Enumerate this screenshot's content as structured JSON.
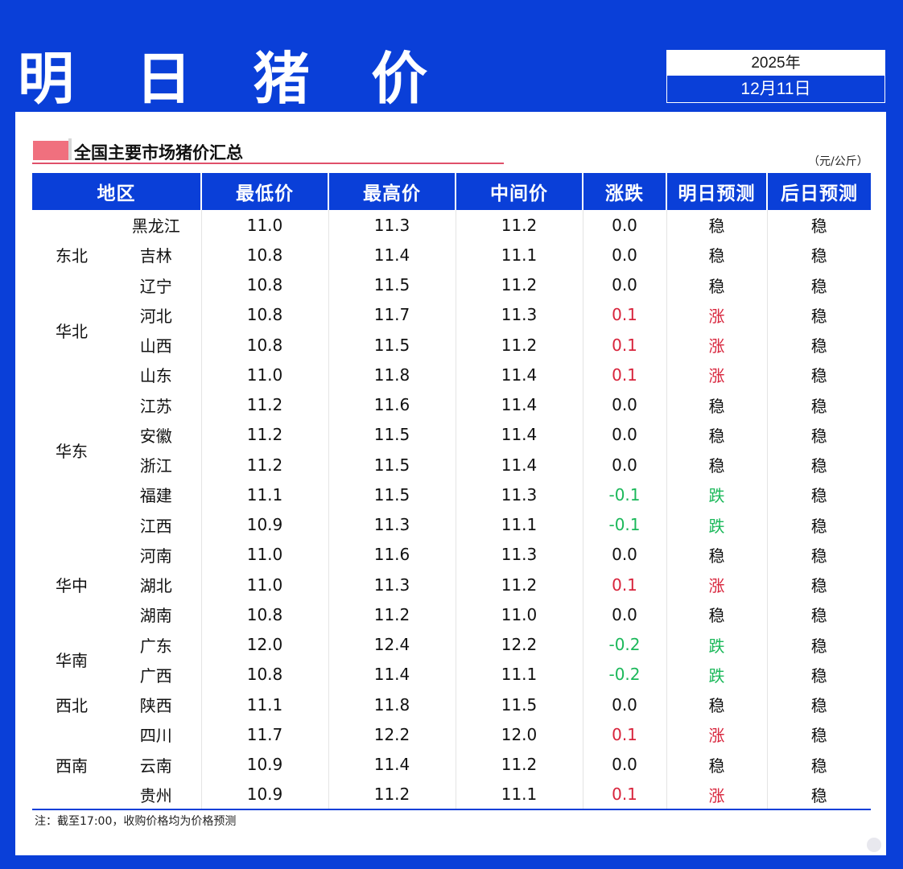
{
  "header": {
    "title": "明 日 猪 价",
    "year": "2025年",
    "date": "12月11日"
  },
  "section": {
    "title": "全国主要市场猪价汇总",
    "unit": "（元/公斤）"
  },
  "colors": {
    "brand_blue": "#0a3fd8",
    "up_red": "#d8243c",
    "down_green": "#1bb85a",
    "marker_pink": "#f0707e"
  },
  "table": {
    "headers": [
      "地区",
      "最低价",
      "最高价",
      "中间价",
      "涨跌",
      "明日预测",
      "后日预测"
    ],
    "regions": [
      {
        "name": "东北",
        "rows": [
          {
            "province": "黑龙江",
            "low": "11.0",
            "high": "11.3",
            "mid": "11.2",
            "change": "0.0",
            "tomorrow": "稳",
            "after": "稳",
            "trend": "flat"
          },
          {
            "province": "吉林",
            "low": "10.8",
            "high": "11.4",
            "mid": "11.1",
            "change": "0.0",
            "tomorrow": "稳",
            "after": "稳",
            "trend": "flat"
          },
          {
            "province": "辽宁",
            "low": "10.8",
            "high": "11.5",
            "mid": "11.2",
            "change": "0.0",
            "tomorrow": "稳",
            "after": "稳",
            "trend": "flat"
          }
        ]
      },
      {
        "name": "华北",
        "rows": [
          {
            "province": "河北",
            "low": "10.8",
            "high": "11.7",
            "mid": "11.3",
            "change": "0.1",
            "tomorrow": "涨",
            "after": "稳",
            "trend": "up"
          },
          {
            "province": "山西",
            "low": "10.8",
            "high": "11.5",
            "mid": "11.2",
            "change": "0.1",
            "tomorrow": "涨",
            "after": "稳",
            "trend": "up"
          }
        ]
      },
      {
        "name": "华东",
        "rows": [
          {
            "province": "山东",
            "low": "11.0",
            "high": "11.8",
            "mid": "11.4",
            "change": "0.1",
            "tomorrow": "涨",
            "after": "稳",
            "trend": "up"
          },
          {
            "province": "江苏",
            "low": "11.2",
            "high": "11.6",
            "mid": "11.4",
            "change": "0.0",
            "tomorrow": "稳",
            "after": "稳",
            "trend": "flat"
          },
          {
            "province": "安徽",
            "low": "11.2",
            "high": "11.5",
            "mid": "11.4",
            "change": "0.0",
            "tomorrow": "稳",
            "after": "稳",
            "trend": "flat"
          },
          {
            "province": "浙江",
            "low": "11.2",
            "high": "11.5",
            "mid": "11.4",
            "change": "0.0",
            "tomorrow": "稳",
            "after": "稳",
            "trend": "flat"
          },
          {
            "province": "福建",
            "low": "11.1",
            "high": "11.5",
            "mid": "11.3",
            "change": "-0.1",
            "tomorrow": "跌",
            "after": "稳",
            "trend": "down"
          },
          {
            "province": "江西",
            "low": "10.9",
            "high": "11.3",
            "mid": "11.1",
            "change": "-0.1",
            "tomorrow": "跌",
            "after": "稳",
            "trend": "down"
          }
        ]
      },
      {
        "name": "华中",
        "rows": [
          {
            "province": "河南",
            "low": "11.0",
            "high": "11.6",
            "mid": "11.3",
            "change": "0.0",
            "tomorrow": "稳",
            "after": "稳",
            "trend": "flat"
          },
          {
            "province": "湖北",
            "low": "11.0",
            "high": "11.3",
            "mid": "11.2",
            "change": "0.1",
            "tomorrow": "涨",
            "after": "稳",
            "trend": "up"
          },
          {
            "province": "湖南",
            "low": "10.8",
            "high": "11.2",
            "mid": "11.0",
            "change": "0.0",
            "tomorrow": "稳",
            "after": "稳",
            "trend": "flat"
          }
        ]
      },
      {
        "name": "华南",
        "rows": [
          {
            "province": "广东",
            "low": "12.0",
            "high": "12.4",
            "mid": "12.2",
            "change": "-0.2",
            "tomorrow": "跌",
            "after": "稳",
            "trend": "down"
          },
          {
            "province": "广西",
            "low": "10.8",
            "high": "11.4",
            "mid": "11.1",
            "change": "-0.2",
            "tomorrow": "跌",
            "after": "稳",
            "trend": "down"
          }
        ]
      },
      {
        "name": "西北",
        "rows": [
          {
            "province": "陕西",
            "low": "11.1",
            "high": "11.8",
            "mid": "11.5",
            "change": "0.0",
            "tomorrow": "稳",
            "after": "稳",
            "trend": "flat"
          }
        ]
      },
      {
        "name": "西南",
        "rows": [
          {
            "province": "四川",
            "low": "11.7",
            "high": "12.2",
            "mid": "12.0",
            "change": "0.1",
            "tomorrow": "涨",
            "after": "稳",
            "trend": "up"
          },
          {
            "province": "云南",
            "low": "10.9",
            "high": "11.4",
            "mid": "11.2",
            "change": "0.0",
            "tomorrow": "稳",
            "after": "稳",
            "trend": "flat"
          },
          {
            "province": "贵州",
            "low": "10.9",
            "high": "11.2",
            "mid": "11.1",
            "change": "0.1",
            "tomorrow": "涨",
            "after": "稳",
            "trend": "up"
          }
        ]
      }
    ]
  },
  "note": "注：截至17:00，收购价格均为价格预测"
}
